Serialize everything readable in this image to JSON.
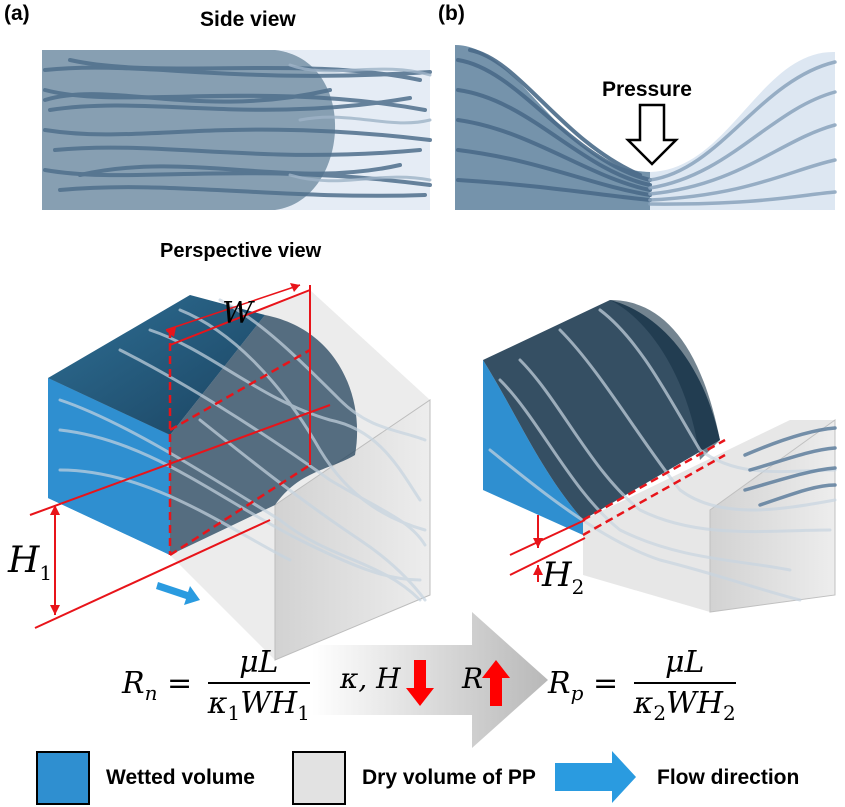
{
  "panels": {
    "a": "(a)",
    "b": "(b)"
  },
  "titles": {
    "side_view": "Side view",
    "perspective_view": "Perspective view",
    "pressure": "Pressure"
  },
  "dimensions": {
    "W": "W",
    "H1": "H",
    "H1_sub": "1",
    "H2": "H",
    "H2_sub": "2"
  },
  "equations": {
    "Rn_lhs": "R",
    "Rn_sub": "n",
    "Rn_num": "μL",
    "Rn_den": "κ",
    "Rn_den_sub": "1",
    "Rn_den_rest": "WH",
    "Rn_den_sub2": "1",
    "Rp_lhs": "R",
    "Rp_sub": "p",
    "Rp_num": "μL",
    "Rp_den": "κ",
    "Rp_den_sub": "2",
    "Rp_den_rest": "WH",
    "Rp_den_sub2": "2",
    "trend_kappa_h": "κ, H",
    "trend_r": "R"
  },
  "legend": {
    "wetted": "Wetted volume",
    "dry": "Dry volume of PP",
    "flow": "Flow direction"
  },
  "colors": {
    "wetted": "#2f8fd0",
    "wetted_dark": "#1f5f86",
    "dry": "#e2e2e2",
    "fiber": "#5f7f9e",
    "annotation": "#e8141a",
    "flow_arrow": "#2a9be0"
  }
}
